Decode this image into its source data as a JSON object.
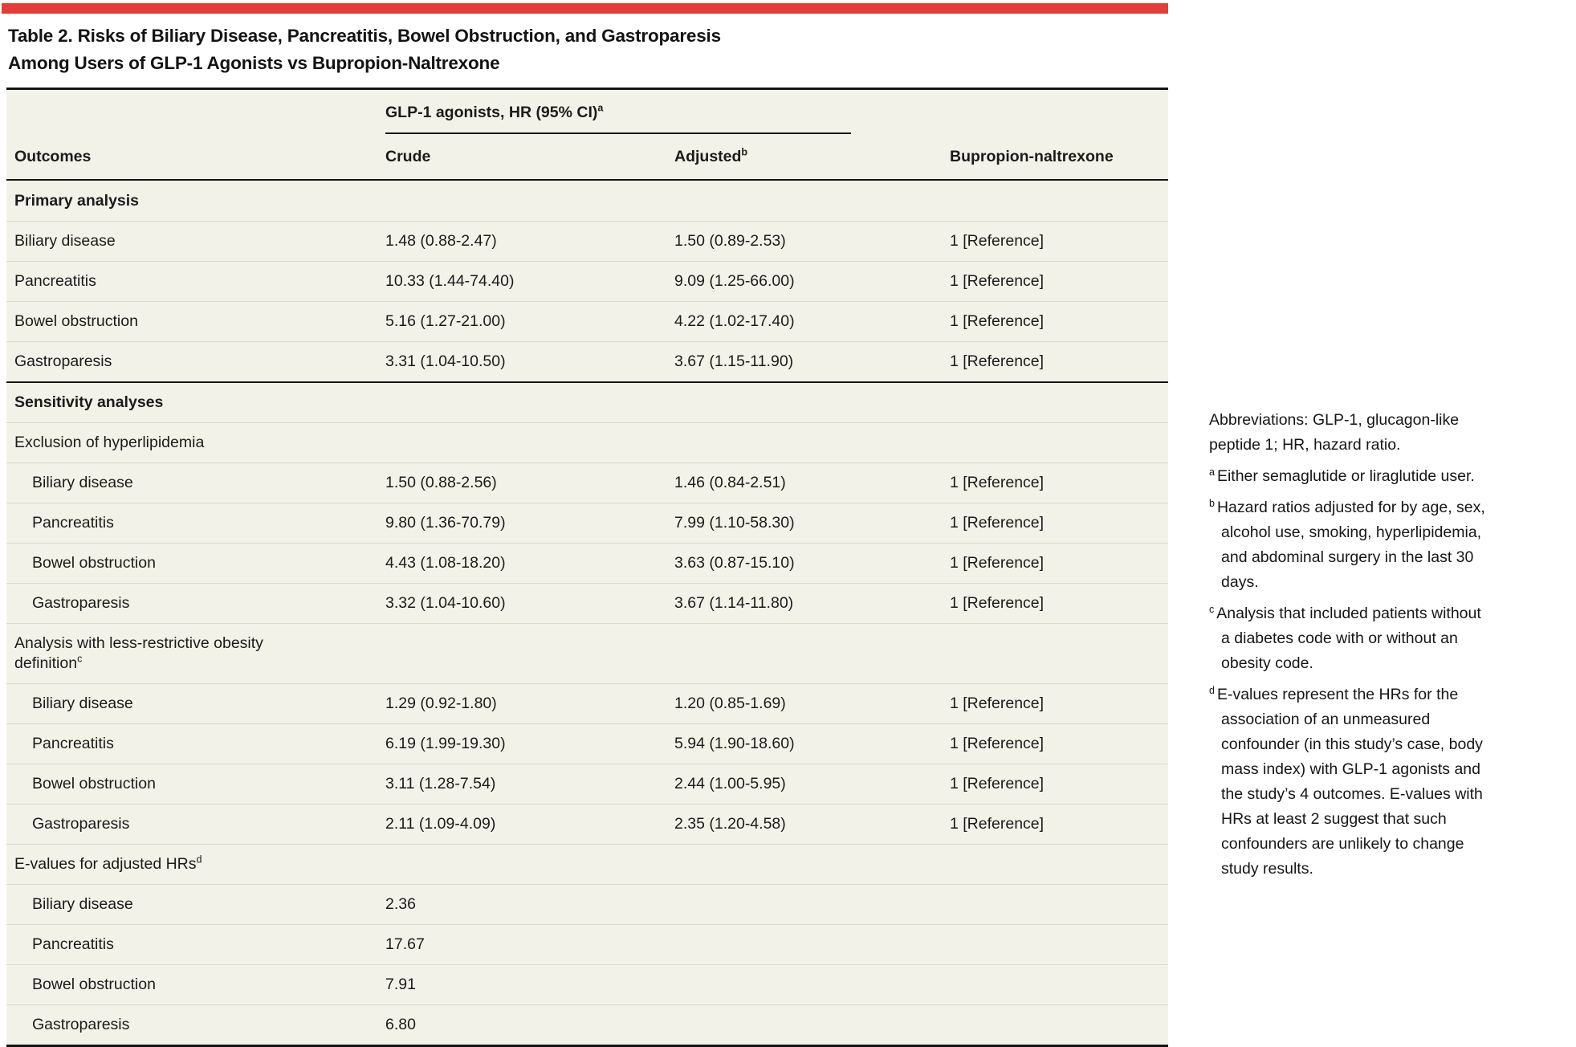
{
  "title": {
    "line1": "Table 2. Risks of Biliary Disease, Pancreatitis, Bowel Obstruction, and Gastroparesis",
    "line2": "Among Users of GLP-1 Agonists vs Bupropion-Naltrexone"
  },
  "colors": {
    "accent_red": "#E23D38",
    "table_background": "#F3F2E9",
    "row_separator": "#DCD9C6",
    "rule_black": "#141414"
  },
  "table": {
    "spanner": {
      "label": "GLP-1 agonists, HR (95% CI)",
      "sup": "a"
    },
    "columns": [
      {
        "key": "outcomes",
        "label": "Outcomes",
        "sup": ""
      },
      {
        "key": "crude",
        "label": "Crude",
        "sup": ""
      },
      {
        "key": "adjusted",
        "label": "Adjusted",
        "sup": "b"
      },
      {
        "key": "reference",
        "label": "Bupropion-naltrexone",
        "sup": ""
      }
    ],
    "sections": [
      {
        "header": "Primary analysis",
        "sup": "",
        "bold": true,
        "thick_top": false,
        "indent_rows": false,
        "rows": [
          {
            "outcome": "Biliary disease",
            "crude": "1.48 (0.88-2.47)",
            "adjusted": "1.50 (0.89-2.53)",
            "reference": "1 [Reference]"
          },
          {
            "outcome": "Pancreatitis",
            "crude": "10.33 (1.44-74.40)",
            "adjusted": "9.09 (1.25-66.00)",
            "reference": "1 [Reference]"
          },
          {
            "outcome": "Bowel obstruction",
            "crude": "5.16 (1.27-21.00)",
            "adjusted": "4.22 (1.02-17.40)",
            "reference": "1 [Reference]"
          },
          {
            "outcome": "Gastroparesis",
            "crude": "3.31 (1.04-10.50)",
            "adjusted": "3.67 (1.15-11.90)",
            "reference": "1 [Reference]"
          }
        ]
      },
      {
        "header": "Sensitivity analyses",
        "sup": "",
        "bold": true,
        "thick_top": true,
        "indent_rows": false,
        "rows": []
      },
      {
        "header": "Exclusion of hyperlipidemia",
        "sup": "",
        "bold": false,
        "thick_top": false,
        "indent_rows": true,
        "rows": [
          {
            "outcome": "Biliary disease",
            "crude": "1.50 (0.88-2.56)",
            "adjusted": "1.46 (0.84-2.51)",
            "reference": "1 [Reference]"
          },
          {
            "outcome": "Pancreatitis",
            "crude": "9.80 (1.36-70.79)",
            "adjusted": "7.99 (1.10-58.30)",
            "reference": "1 [Reference]"
          },
          {
            "outcome": "Bowel obstruction",
            "crude": "4.43 (1.08-18.20)",
            "adjusted": "3.63 (0.87-15.10)",
            "reference": "1 [Reference]"
          },
          {
            "outcome": "Gastroparesis",
            "crude": "3.32 (1.04-10.60)",
            "adjusted": "3.67 (1.14-11.80)",
            "reference": "1 [Reference]"
          }
        ]
      },
      {
        "header": "Analysis with less-restrictive obesity definition",
        "sup": "c",
        "bold": false,
        "thick_top": false,
        "indent_rows": true,
        "rows": [
          {
            "outcome": "Biliary disease",
            "crude": "1.29 (0.92-1.80)",
            "adjusted": "1.20 (0.85-1.69)",
            "reference": "1 [Reference]"
          },
          {
            "outcome": "Pancreatitis",
            "crude": "6.19 (1.99-19.30)",
            "adjusted": "5.94 (1.90-18.60)",
            "reference": "1 [Reference]"
          },
          {
            "outcome": "Bowel obstruction",
            "crude": "3.11 (1.28-7.54)",
            "adjusted": "2.44 (1.00-5.95)",
            "reference": "1 [Reference]"
          },
          {
            "outcome": "Gastroparesis",
            "crude": "2.11 (1.09-4.09)",
            "adjusted": "2.35 (1.20-4.58)",
            "reference": "1 [Reference]"
          }
        ]
      },
      {
        "header": "E-values for adjusted HRs",
        "sup": "d",
        "bold": false,
        "thick_top": false,
        "indent_rows": true,
        "rows": [
          {
            "outcome": "Biliary disease",
            "crude": "2.36",
            "adjusted": "",
            "reference": ""
          },
          {
            "outcome": "Pancreatitis",
            "crude": "17.67",
            "adjusted": "",
            "reference": ""
          },
          {
            "outcome": "Bowel obstruction",
            "crude": "7.91",
            "adjusted": "",
            "reference": ""
          },
          {
            "outcome": "Gastroparesis",
            "crude": "6.80",
            "adjusted": "",
            "reference": ""
          }
        ]
      }
    ]
  },
  "footnotes": {
    "abbreviations": "Abbreviations: GLP-1, glucagon-like peptide 1; HR, hazard ratio.",
    "items": [
      {
        "sup": "a",
        "text": "Either semaglutide or liraglutide user."
      },
      {
        "sup": "b",
        "text": "Hazard ratios adjusted for by age, sex, alcohol use, smoking, hyperlipidemia, and abdominal surgery in the last 30 days."
      },
      {
        "sup": "c",
        "text": "Analysis that included patients without a diabetes code with or without an obesity code."
      },
      {
        "sup": "d",
        "text": "E-values represent the HRs for the association of an unmeasured confounder (in this study’s case, body mass index) with GLP-1 agonists and the study’s 4 outcomes. E-values with HRs at least 2 suggest that such confounders are unlikely to change study results."
      }
    ]
  }
}
